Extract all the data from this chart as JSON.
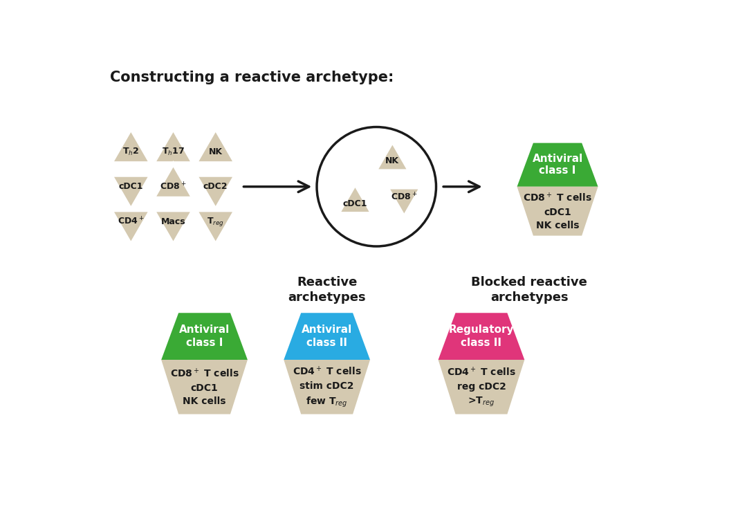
{
  "title": "Constructing a reactive archetype:",
  "bg_color": "#ffffff",
  "triangle_color": "#d4c9b0",
  "triangle_edge_color": "#ffffff",
  "green_color": "#3aaa35",
  "blue_color": "#29abe2",
  "pink_color": "#e0357a",
  "text_color": "#1a1a1a",
  "arrow_color": "#1a1a1a",
  "hexagon1_top_label": "Antiviral\nclass I",
  "hexagon1_bottom_label": "CD8$^+$ T cells\ncDC1\nNK cells",
  "hexagon1_top_color": "#3aaa35",
  "reactive_title": "Reactive\narchetypes",
  "blocked_title": "Blocked reactive\narchetypes",
  "hex_specs": [
    {
      "top_color": "#3aaa35",
      "top_label": "Antiviral\nclass I",
      "bottom_label": "CD8$^+$ T cells\ncDC1\nNK cells"
    },
    {
      "top_color": "#29abe2",
      "top_label": "Antiviral\nclass II",
      "bottom_label": "CD4$^+$ T cells\nstim cDC2\nfew T$_{reg}$"
    },
    {
      "top_color": "#e0357a",
      "top_label": "Regulatory\nclass II",
      "bottom_label": "CD4$^+$ T cells\nreg cDC2\n>T$_{reg}$"
    }
  ]
}
